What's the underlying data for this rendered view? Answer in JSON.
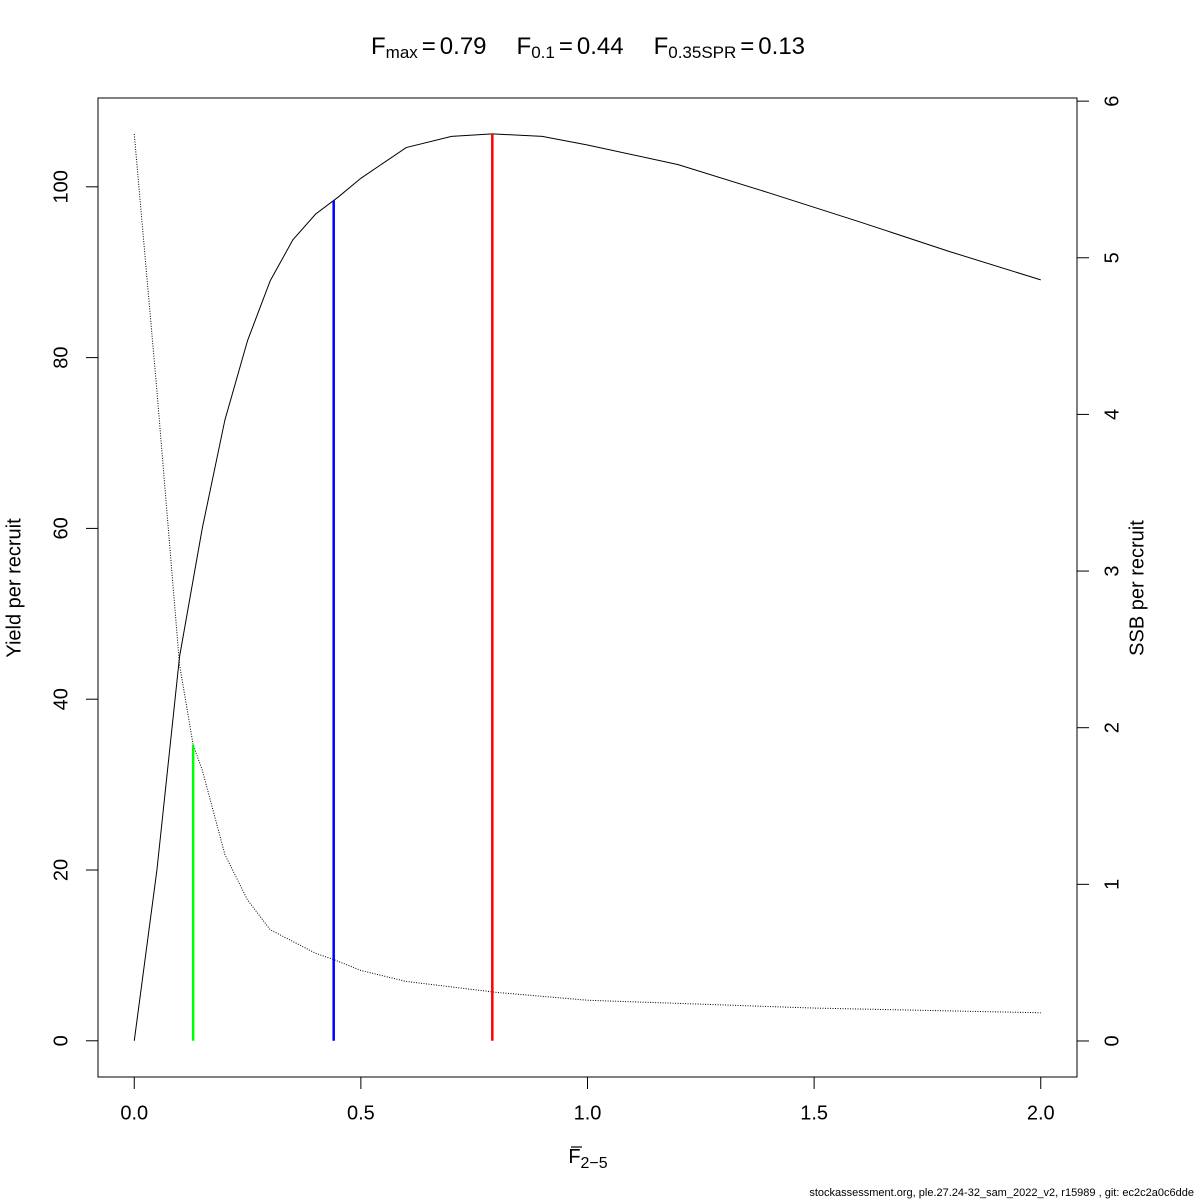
{
  "chart_data": {
    "type": "line",
    "title": [
      {
        "symbol": "F",
        "subscript": "max",
        "relation": "=",
        "value": 0.79,
        "color": "#ff0000",
        "top": 106.2,
        "axis": "y"
      },
      {
        "symbol": "F",
        "subscript": "0.1",
        "relation": "=",
        "value": 0.44,
        "color": "#0000ff",
        "top": 98.4,
        "axis": "y"
      },
      {
        "symbol": "F",
        "subscript": "0.35SPR",
        "relation": "=",
        "value": 0.13,
        "color": "#00ff00",
        "top": 1.89,
        "axis": "y2"
      }
    ],
    "xlabel": {
      "symbol": "F",
      "subscript": "2−5"
    },
    "ylabel": "Yield per recruit",
    "y2label": "SSB per recruit",
    "footer": "stockassessment.org, ple.27.24-32_sam_2022_v2, r15989 , git: ec2c2a0c6dde",
    "xlim": [
      -0.08,
      2.08
    ],
    "xticks": [
      {
        "value": 0,
        "label": "0.0"
      },
      0.5,
      {
        "value": 1,
        "label": "1.0"
      },
      1.5,
      {
        "value": 2,
        "label": "2.0"
      }
    ],
    "ylim": [
      -4.24,
      110.4
    ],
    "yticks": [
      0,
      20,
      40,
      60,
      80,
      100
    ],
    "y2lim": [
      -0.23,
      6.02
    ],
    "y2ticks": [
      0,
      1,
      2,
      3,
      4,
      5,
      6
    ],
    "series": [
      {
        "name": "Yield per recruit",
        "color": "#000000",
        "dash": "solid",
        "axis": "y",
        "x": [
          0,
          0.05,
          0.1,
          0.15,
          0.2,
          0.25,
          0.3,
          0.35,
          0.4,
          0.45,
          0.5,
          0.6,
          0.7,
          0.79,
          0.9,
          1.0,
          1.2,
          1.4,
          1.6,
          1.8,
          2.0
        ],
        "values": [
          0,
          20,
          45,
          60,
          72.7,
          82,
          89,
          93.8,
          96.8,
          98.8,
          101,
          104.6,
          105.9,
          106.2,
          105.9,
          104.9,
          102.6,
          99.3,
          95.9,
          92.4,
          89.1
        ]
      },
      {
        "name": "SSB per recruit",
        "color": "#000000",
        "dash": "dotted",
        "axis": "y2",
        "x": [
          0,
          0.05,
          0.1,
          0.13,
          0.15,
          0.2,
          0.25,
          0.3,
          0.4,
          0.44,
          0.5,
          0.6,
          0.8,
          1.0,
          1.5,
          2.0
        ],
        "values": [
          5.79,
          4.15,
          2.4,
          1.89,
          1.73,
          1.19,
          0.9,
          0.71,
          0.56,
          0.52,
          0.45,
          0.38,
          0.31,
          0.26,
          0.21,
          0.18
        ]
      }
    ]
  }
}
